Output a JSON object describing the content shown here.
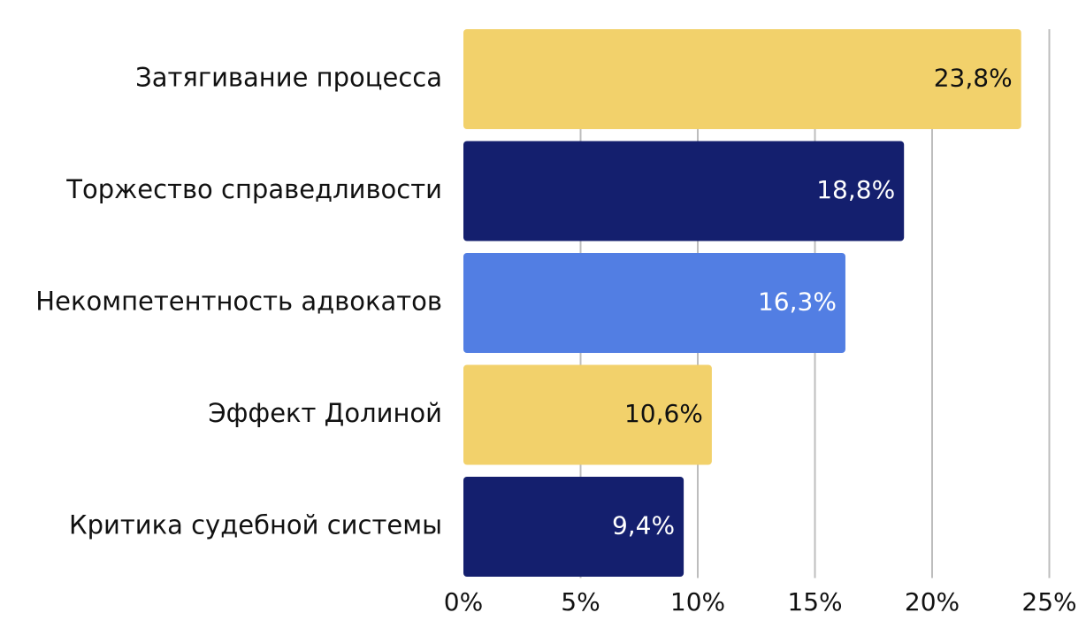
{
  "chart_data": {
    "type": "hbar",
    "categories": [
      "Затягивание процесса",
      "Торжество справедливости",
      "Некомпетентность адвокатов",
      "Эффект Долиной",
      "Критика судебной системы"
    ],
    "values": [
      23.8,
      18.8,
      16.3,
      10.6,
      9.4
    ],
    "value_labels": [
      "23,8%",
      "18,8%",
      "16,3%",
      "10,6%",
      "9,4%"
    ],
    "colors": [
      "#f2d16b",
      "#141f6e",
      "#527ee3",
      "#f2d16b",
      "#141f6e"
    ],
    "xlim": [
      0,
      25
    ],
    "xticks": [
      {
        "value": 0,
        "label": "0%"
      },
      {
        "value": 5,
        "label": "5%"
      },
      {
        "value": 10,
        "label": "10%"
      },
      {
        "value": 15,
        "label": "15%"
      },
      {
        "value": 20,
        "label": "20%"
      },
      {
        "value": 25,
        "label": "25%"
      }
    ],
    "grid": true
  }
}
